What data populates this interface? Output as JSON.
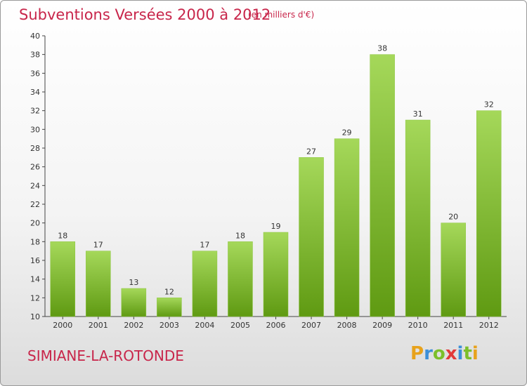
{
  "header": {
    "title": "Subventions Versées 2000 à 2012",
    "subtitle": "(en milliers d'€)"
  },
  "footer": {
    "commune": "SIMIANE-LA-ROTONDE",
    "logo_text": "Proxiti"
  },
  "colors": {
    "title": "#c8254a",
    "bar_light": "#a5d85a",
    "bar_dark": "#5f9a12",
    "axis": "#444444",
    "grid": "#d0d0d0"
  },
  "chart_data": {
    "type": "bar",
    "title": "Subventions Versées 2000 à 2012",
    "categories": [
      "2000",
      "2001",
      "2002",
      "2003",
      "2004",
      "2005",
      "2006",
      "2007",
      "2008",
      "2009",
      "2010",
      "2011",
      "2012"
    ],
    "values": [
      18,
      17,
      13,
      12,
      17,
      18,
      19,
      27,
      29,
      38,
      31,
      20,
      32
    ],
    "ylim": [
      10,
      40
    ],
    "yticks": [
      10,
      12,
      14,
      16,
      18,
      20,
      22,
      24,
      26,
      28,
      30,
      32,
      34,
      36,
      38,
      40
    ],
    "grid": false,
    "legend": "none"
  }
}
